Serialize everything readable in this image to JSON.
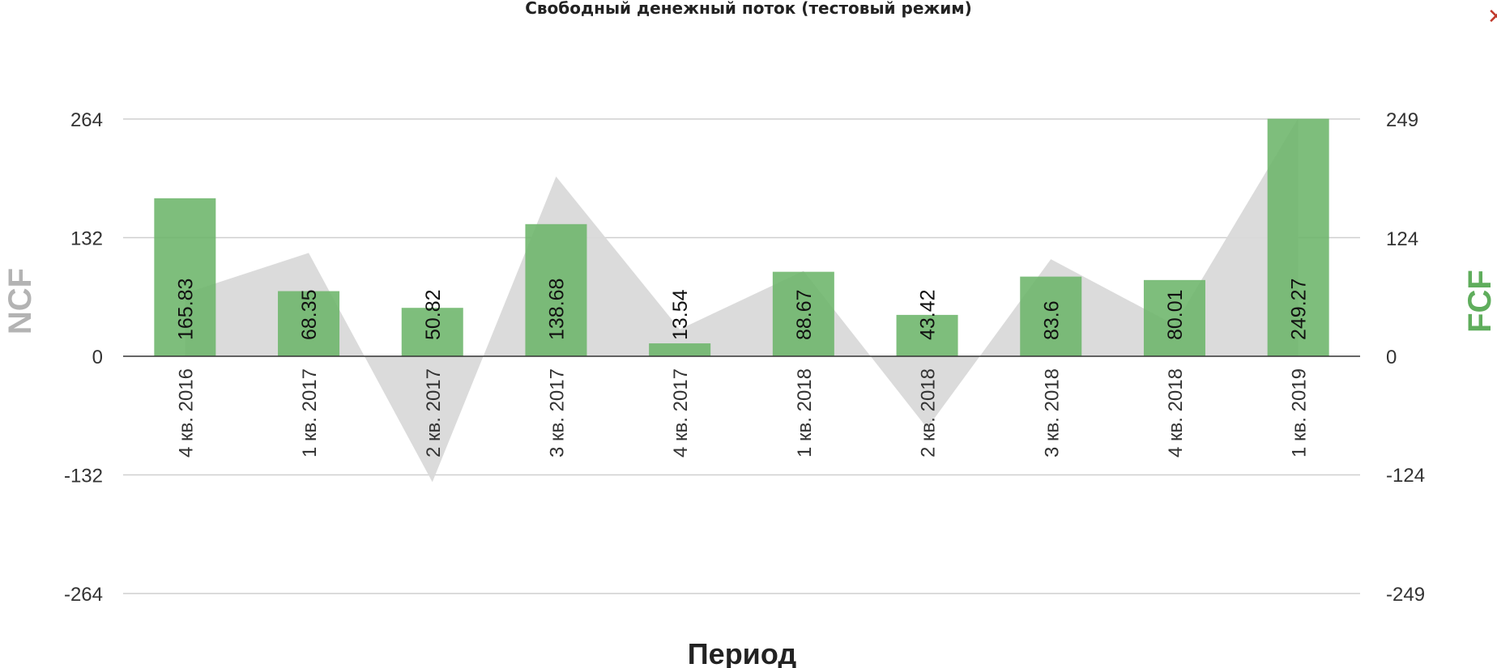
{
  "chart_data": {
    "type": "bar",
    "title": "Свободный денежный поток (тестовый режим)",
    "xlabel": "Период",
    "ylabel_left": "NCF",
    "ylabel_right": "FCF",
    "categories": [
      "4 кв. 2016",
      "1 кв. 2017",
      "2 кв. 2017",
      "3 кв. 2017",
      "4 кв. 2017",
      "1 кв. 2018",
      "2 кв. 2018",
      "3 кв. 2018",
      "4 кв. 2018",
      "1 кв. 2019"
    ],
    "series": [
      {
        "type": "bar",
        "axis": "right",
        "color": "#6cb56a",
        "values": [
          165.83,
          68.35,
          50.82,
          138.68,
          13.54,
          88.67,
          43.42,
          83.6,
          80.01,
          249.27
        ]
      },
      {
        "type": "area",
        "axis": "left",
        "color": "#d9d9d9",
        "values": [
          70,
          115,
          -140,
          200,
          30,
          95,
          -80,
          108,
          35,
          265
        ]
      }
    ],
    "y_left": {
      "ticks": [
        264,
        132,
        0,
        -132,
        -264
      ],
      "range": [
        -264,
        264
      ]
    },
    "y_right": {
      "ticks": [
        249,
        124,
        0,
        -124,
        -249
      ],
      "range": [
        -249,
        249
      ]
    },
    "grid": true,
    "legend": "none"
  },
  "ui": {
    "close_icon": "close-icon",
    "close_symbol": "✕"
  }
}
